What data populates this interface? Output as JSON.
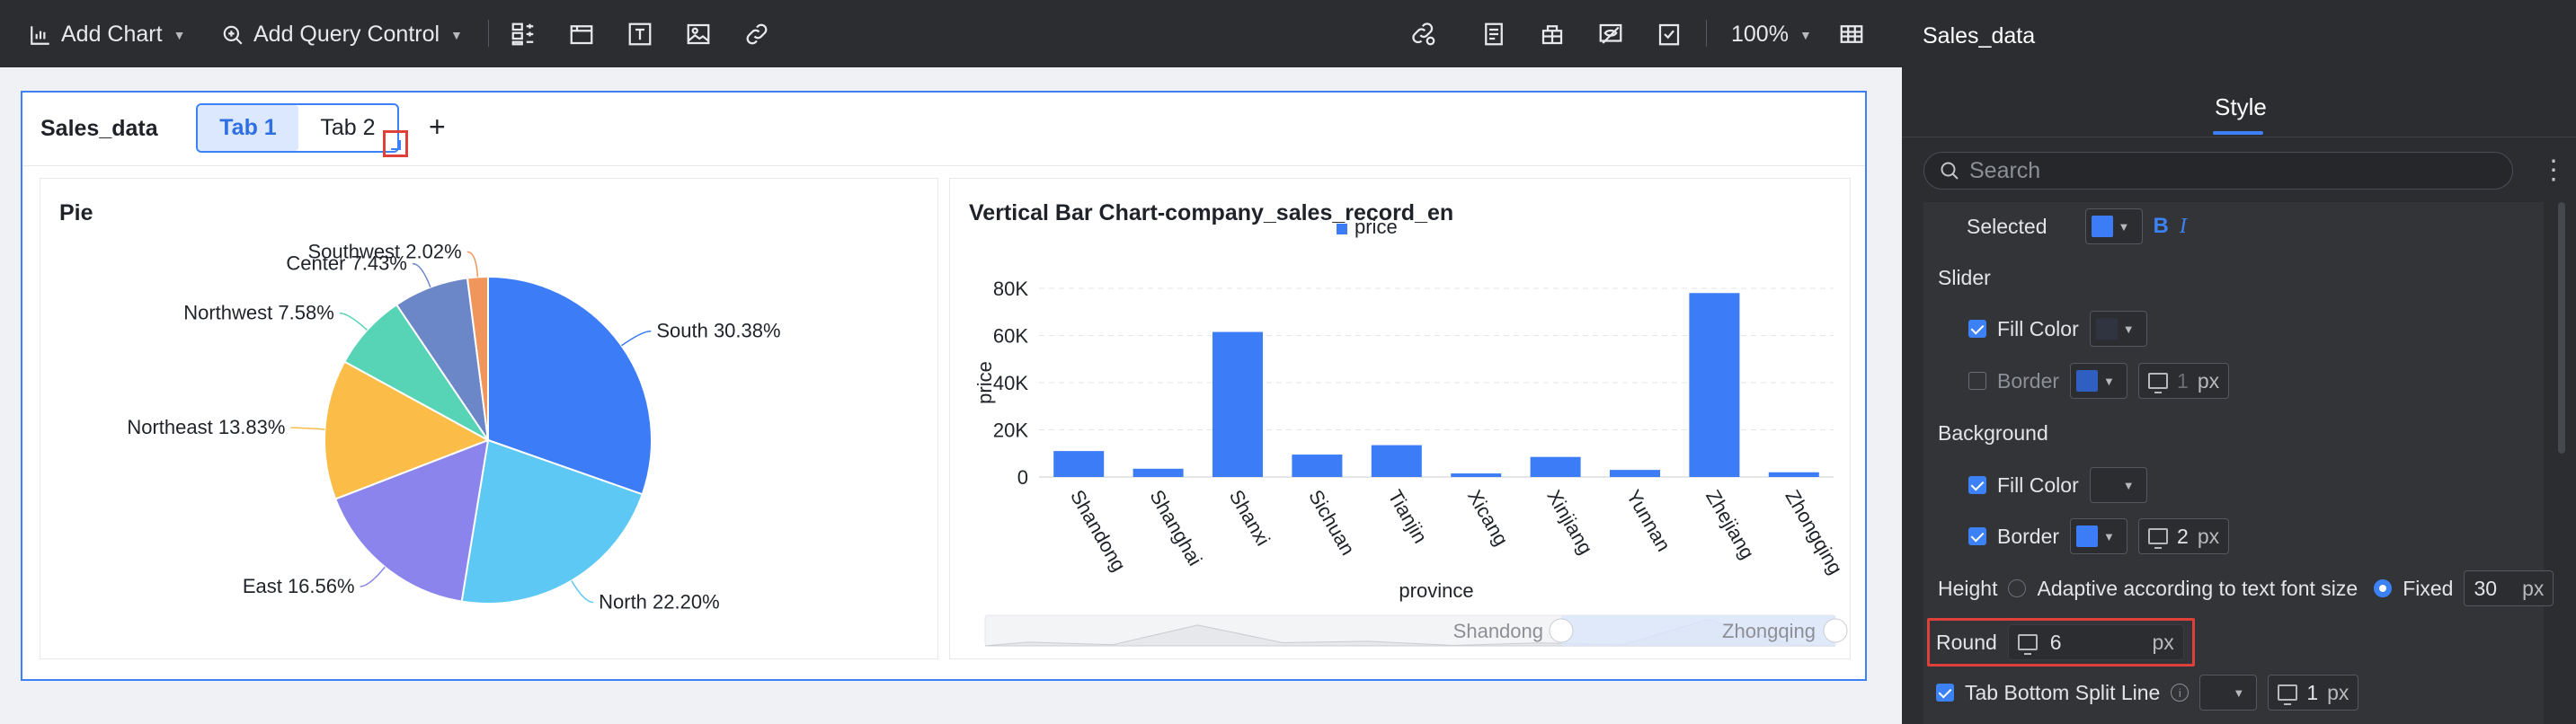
{
  "toolbar": {
    "add_chart": "Add Chart",
    "add_query_control": "Add Query Control",
    "zoom": "100%"
  },
  "container": {
    "title": "Sales_data",
    "tabs": [
      {
        "label": "Tab 1",
        "active": true
      },
      {
        "label": "Tab 2",
        "active": false
      }
    ],
    "add_tab": "+"
  },
  "pie_card": {
    "title": "Pie"
  },
  "bar_card": {
    "title": "Vertical Bar Chart-company_sales_record_en"
  },
  "chart_data": [
    {
      "type": "pie",
      "title": "Pie",
      "slices": [
        {
          "label": "South",
          "value": 30.38,
          "text": "South 30.38%",
          "color": "#3c7cf6"
        },
        {
          "label": "North",
          "value": 22.2,
          "text": "North 22.20%",
          "color": "#5ec8f4"
        },
        {
          "label": "East",
          "value": 16.56,
          "text": "East 16.56%",
          "color": "#8a84ec"
        },
        {
          "label": "Northeast",
          "value": 13.83,
          "text": "Northeast 13.83%",
          "color": "#fbbd47"
        },
        {
          "label": "Northwest",
          "value": 7.58,
          "text": "Northwest 7.58%",
          "color": "#57d3b6"
        },
        {
          "label": "Center",
          "value": 7.43,
          "text": "Center 7.43%",
          "color": "#6c87c8"
        },
        {
          "label": "Southwest",
          "value": 2.02,
          "text": "Southwest 2.02%",
          "color": "#f0955b"
        }
      ]
    },
    {
      "type": "bar",
      "title": "Vertical Bar Chart-company_sales_record_en",
      "xlabel": "province",
      "ylabel": "price",
      "legend": [
        "price"
      ],
      "legend_position": "top-center",
      "color": "#3c7cf6",
      "grid": true,
      "ylim": [
        0,
        80000
      ],
      "yticks": [
        {
          "value": 0,
          "label": "0"
        },
        {
          "value": 20000,
          "label": "20K"
        },
        {
          "value": 40000,
          "label": "40K"
        },
        {
          "value": 60000,
          "label": "60K"
        },
        {
          "value": 80000,
          "label": "80K"
        }
      ],
      "categories": [
        "Shandong",
        "Shanghai",
        "Shanxi",
        "Sichuan",
        "Tianjin",
        "Xicang",
        "Xinjiang",
        "Yunnan",
        "Zhejiang",
        "Zhongqing"
      ],
      "values": [
        11000,
        3500,
        61500,
        9500,
        13500,
        1500,
        8500,
        3000,
        78000,
        2000
      ],
      "slider": {
        "start_label": "Shandong",
        "end_label": "Zhongqing"
      }
    }
  ],
  "panel": {
    "title": "Sales_data",
    "tab_style": "Style",
    "search_placeholder": "Search",
    "selected_label": "Selected",
    "selected_bold": "B",
    "selected_italic": "I",
    "selected_color": "#3c7cf6",
    "slider_section": "Slider",
    "slider_fill_label": "Fill Color",
    "slider_fill_color": "#2f3440",
    "slider_border_label": "Border",
    "slider_border_color": "#2f5fc0",
    "slider_border_width": "1",
    "background_section": "Background",
    "bg_fill_label": "Fill Color",
    "bg_fill_color": "#2b2d31",
    "bg_border_label": "Border",
    "bg_border_color": "#3c7cf6",
    "bg_border_width": "2",
    "height_label": "Height",
    "height_adaptive": "Adaptive according to text font size",
    "height_fixed": "Fixed",
    "height_value": "30",
    "round_label": "Round",
    "round_value": "6",
    "split_line_label": "Tab Bottom Split Line",
    "split_line_width": "1",
    "unit": "px"
  }
}
